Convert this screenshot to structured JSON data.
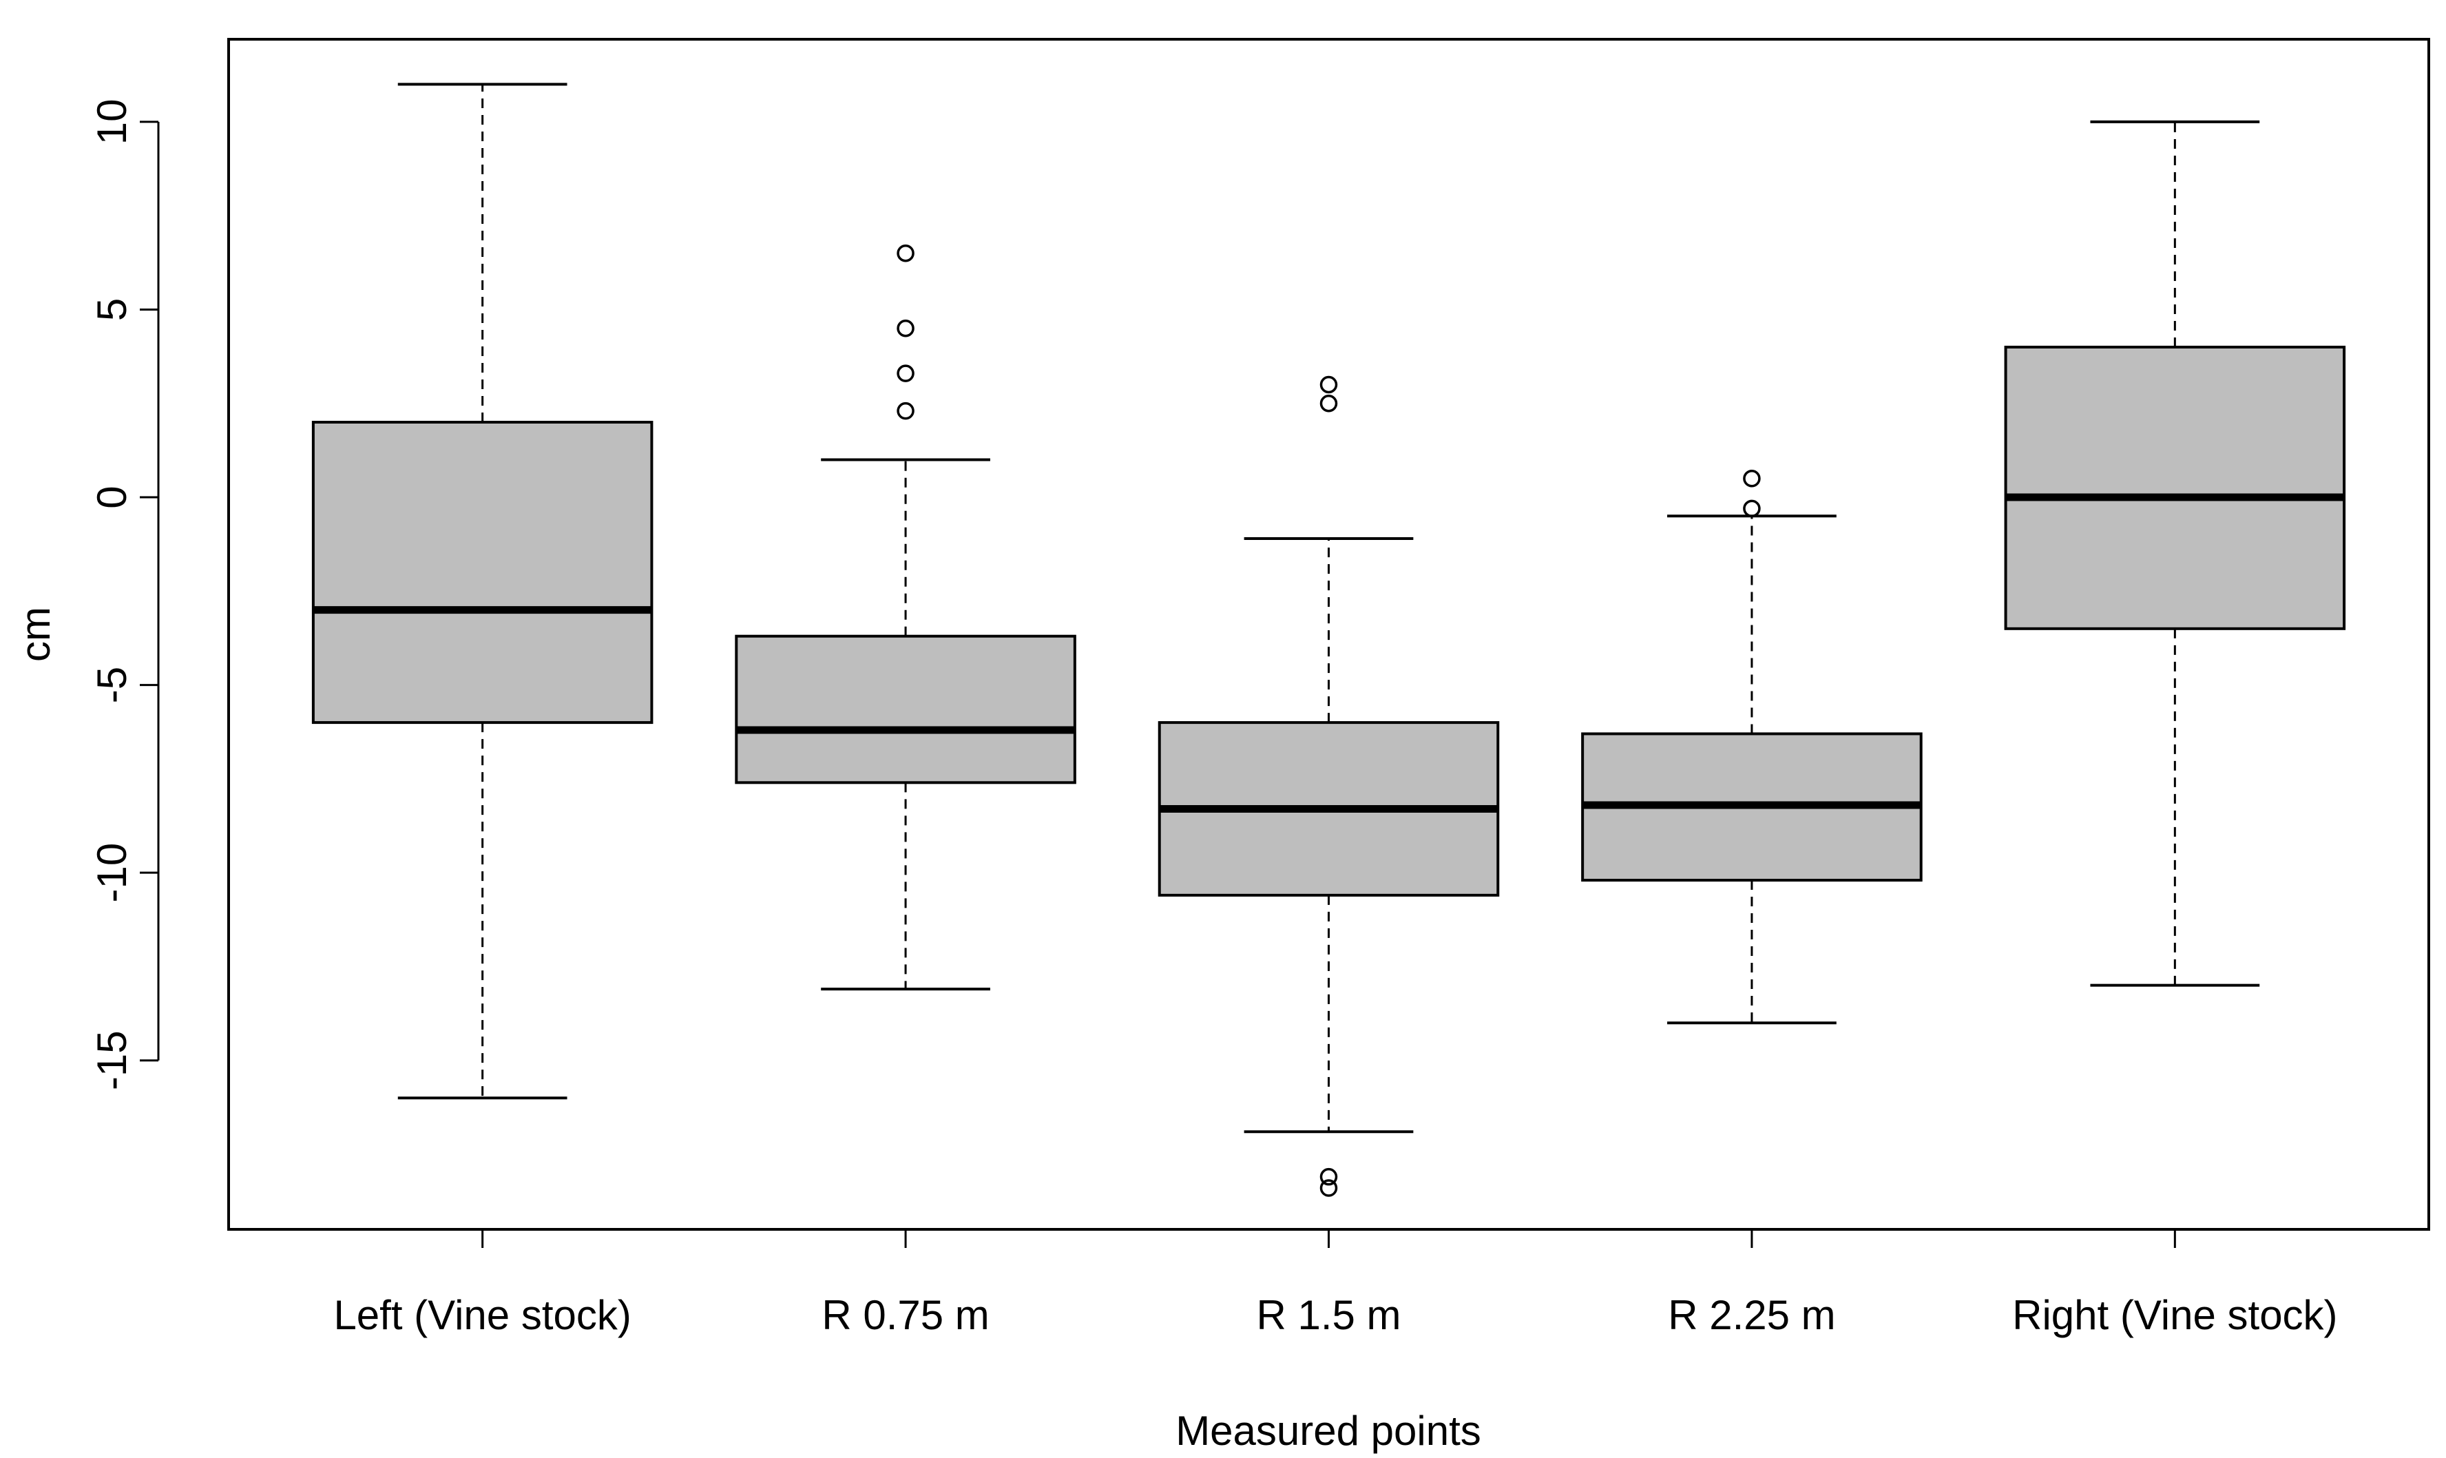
{
  "chart_data": {
    "type": "boxplot",
    "title": "",
    "xlabel": "Measured points",
    "ylabel": "cm",
    "ylim": [
      -19.5,
      12.2
    ],
    "yticks": [
      10,
      5,
      0,
      -5,
      -10,
      -15
    ],
    "ytick_labels": [
      "10",
      "5",
      "0",
      "-5",
      "-10",
      "-15"
    ],
    "box_fill": "#bebebe",
    "grid": false,
    "legend": "none",
    "categories": [
      "Left (Vine stock)",
      "R 0.75 m",
      "R 1.5 m",
      "R 2.25 m",
      "Right (Vine stock)"
    ],
    "boxes": [
      {
        "name": "Left (Vine stock)",
        "whisker_low": -16,
        "q1": -6,
        "median": -3,
        "q3": 2,
        "whisker_high": 11,
        "outliers": []
      },
      {
        "name": "R 0.75 m",
        "whisker_low": -13.1,
        "q1": -7.6,
        "median": -6.2,
        "q3": -3.7,
        "whisker_high": 1,
        "outliers": [
          2.3,
          3.3,
          4.5,
          6.5
        ]
      },
      {
        "name": "R 1.5 m",
        "whisker_low": -16.9,
        "q1": -10.6,
        "median": -8.3,
        "q3": -6,
        "whisker_high": -1.1,
        "outliers": [
          2.5,
          3,
          -18.1,
          -18.4
        ]
      },
      {
        "name": "R 2.25 m",
        "whisker_low": -14,
        "q1": -10.2,
        "median": -8.2,
        "q3": -6.3,
        "whisker_high": -0.5,
        "outliers": [
          -0.3,
          0.5
        ]
      },
      {
        "name": "Right (Vine stock)",
        "whisker_low": -13,
        "q1": -3.5,
        "median": 0,
        "q3": 4,
        "whisker_high": 10,
        "outliers": []
      }
    ]
  }
}
